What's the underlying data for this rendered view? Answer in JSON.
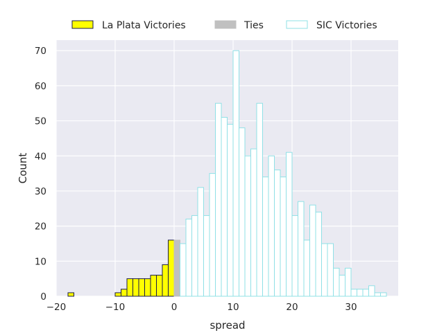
{
  "chart_data": {
    "type": "bar",
    "xlabel": "spread",
    "ylabel": "Count",
    "xlim": [
      -20,
      38
    ],
    "ylim": [
      0,
      73
    ],
    "bin_width": 1,
    "grid": true,
    "legend_position": "top-center",
    "x_ticks": [
      -20,
      -10,
      0,
      10,
      20,
      30
    ],
    "x_tick_labels": [
      "−20",
      "−10",
      "0",
      "10",
      "20",
      "30"
    ],
    "y_ticks": [
      0,
      10,
      20,
      30,
      40,
      50,
      60,
      70
    ],
    "y_tick_labels": [
      "0",
      "10",
      "20",
      "30",
      "40",
      "50",
      "60",
      "70"
    ],
    "series": [
      {
        "name": "La Plata Victories",
        "fill": "#ffff00",
        "edge": "#1a1a4a",
        "bins": [
          {
            "x": -18,
            "count": 1
          },
          {
            "x": -10,
            "count": 1
          },
          {
            "x": -9,
            "count": 2
          },
          {
            "x": -8,
            "count": 5
          },
          {
            "x": -7,
            "count": 5
          },
          {
            "x": -6,
            "count": 5
          },
          {
            "x": -5,
            "count": 5
          },
          {
            "x": -4,
            "count": 6
          },
          {
            "x": -3,
            "count": 6
          },
          {
            "x": -2,
            "count": 9
          },
          {
            "x": -1,
            "count": 16
          }
        ]
      },
      {
        "name": "Ties",
        "fill": "#c0c0c0",
        "edge": "#c0c0c0",
        "bins": [
          {
            "x": 0,
            "count": 16
          }
        ]
      },
      {
        "name": "SIC Victories",
        "fill": "#ffffff",
        "edge": "#8fe0e6",
        "bins": [
          {
            "x": 1,
            "count": 15
          },
          {
            "x": 2,
            "count": 22
          },
          {
            "x": 3,
            "count": 23
          },
          {
            "x": 4,
            "count": 31
          },
          {
            "x": 5,
            "count": 23
          },
          {
            "x": 6,
            "count": 35
          },
          {
            "x": 7,
            "count": 55
          },
          {
            "x": 8,
            "count": 51
          },
          {
            "x": 9,
            "count": 49
          },
          {
            "x": 10,
            "count": 70
          },
          {
            "x": 11,
            "count": 48
          },
          {
            "x": 12,
            "count": 40
          },
          {
            "x": 13,
            "count": 42
          },
          {
            "x": 14,
            "count": 55
          },
          {
            "x": 15,
            "count": 34
          },
          {
            "x": 16,
            "count": 40
          },
          {
            "x": 17,
            "count": 36
          },
          {
            "x": 18,
            "count": 34
          },
          {
            "x": 19,
            "count": 41
          },
          {
            "x": 20,
            "count": 23
          },
          {
            "x": 21,
            "count": 27
          },
          {
            "x": 22,
            "count": 16
          },
          {
            "x": 23,
            "count": 26
          },
          {
            "x": 24,
            "count": 24
          },
          {
            "x": 25,
            "count": 15
          },
          {
            "x": 26,
            "count": 15
          },
          {
            "x": 27,
            "count": 8
          },
          {
            "x": 28,
            "count": 6
          },
          {
            "x": 29,
            "count": 8
          },
          {
            "x": 30,
            "count": 2
          },
          {
            "x": 31,
            "count": 2
          },
          {
            "x": 32,
            "count": 2
          },
          {
            "x": 33,
            "count": 3
          },
          {
            "x": 34,
            "count": 1
          },
          {
            "x": 35,
            "count": 1
          }
        ]
      }
    ]
  }
}
